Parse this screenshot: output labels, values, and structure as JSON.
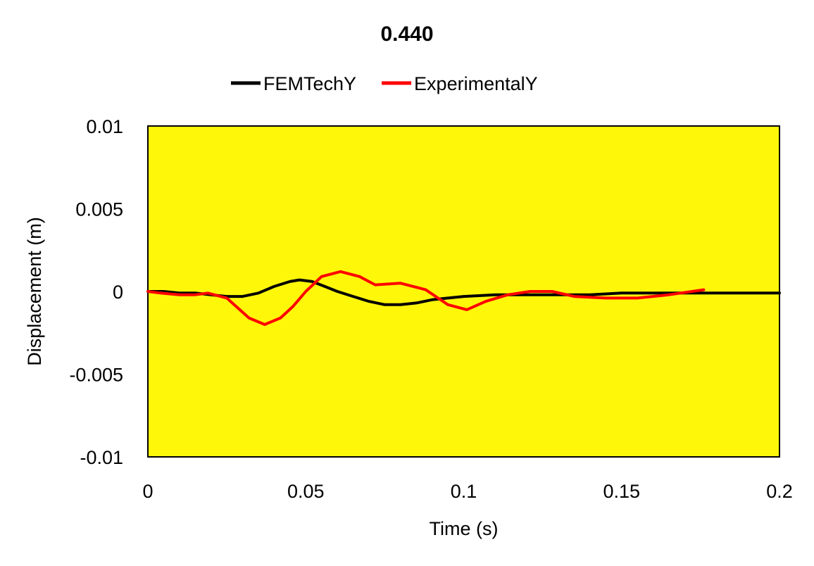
{
  "chart_data": {
    "type": "line",
    "title": "0.440",
    "xlabel": "Time (s)",
    "ylabel": "Displacement (m)",
    "xlim": [
      0,
      0.2
    ],
    "ylim": [
      -0.01,
      0.01
    ],
    "x_ticks": [
      "0",
      "0.05",
      "0.1",
      "0.15",
      "0.2"
    ],
    "y_ticks": [
      "0.01",
      "0.005",
      "0",
      "-0.005",
      "-0.01"
    ],
    "grid": false,
    "legend_position": "top",
    "plot_background": "#FFF70A",
    "series": [
      {
        "name": "FEMTechY",
        "color": "#000000",
        "x": [
          0,
          0.005,
          0.01,
          0.015,
          0.02,
          0.025,
          0.03,
          0.035,
          0.04,
          0.045,
          0.048,
          0.052,
          0.056,
          0.06,
          0.065,
          0.07,
          0.075,
          0.08,
          0.085,
          0.09,
          0.095,
          0.1,
          0.11,
          0.12,
          0.13,
          0.14,
          0.15,
          0.16,
          0.17,
          0.18,
          0.19,
          0.2
        ],
        "y": [
          0,
          0,
          -0.0001,
          -0.0001,
          -0.0002,
          -0.0003,
          -0.0003,
          -0.0001,
          0.0003,
          0.0006,
          0.0007,
          0.0006,
          0.0003,
          0,
          -0.0003,
          -0.0006,
          -0.0008,
          -0.0008,
          -0.0007,
          -0.0005,
          -0.0004,
          -0.0003,
          -0.0002,
          -0.0002,
          -0.0002,
          -0.0002,
          -0.0001,
          -0.0001,
          -0.0001,
          -0.0001,
          -0.0001,
          -0.0001
        ]
      },
      {
        "name": "ExperimentalY",
        "color": "#FF0000",
        "x": [
          0,
          0.004,
          0.01,
          0.015,
          0.019,
          0.025,
          0.032,
          0.037,
          0.042,
          0.046,
          0.05,
          0.055,
          0.061,
          0.067,
          0.072,
          0.08,
          0.088,
          0.095,
          0.101,
          0.107,
          0.114,
          0.121,
          0.128,
          0.135,
          0.145,
          0.155,
          0.165,
          0.176
        ],
        "y": [
          0,
          -0.0001,
          -0.0002,
          -0.0002,
          -0.0001,
          -0.0004,
          -0.0016,
          -0.002,
          -0.0016,
          -0.0009,
          0,
          0.0009,
          0.0012,
          0.0009,
          0.0004,
          0.0005,
          0.0001,
          -0.0008,
          -0.0011,
          -0.0006,
          -0.0002,
          0,
          0,
          -0.0003,
          -0.0004,
          -0.0004,
          -0.0002,
          0.0001
        ]
      }
    ]
  }
}
